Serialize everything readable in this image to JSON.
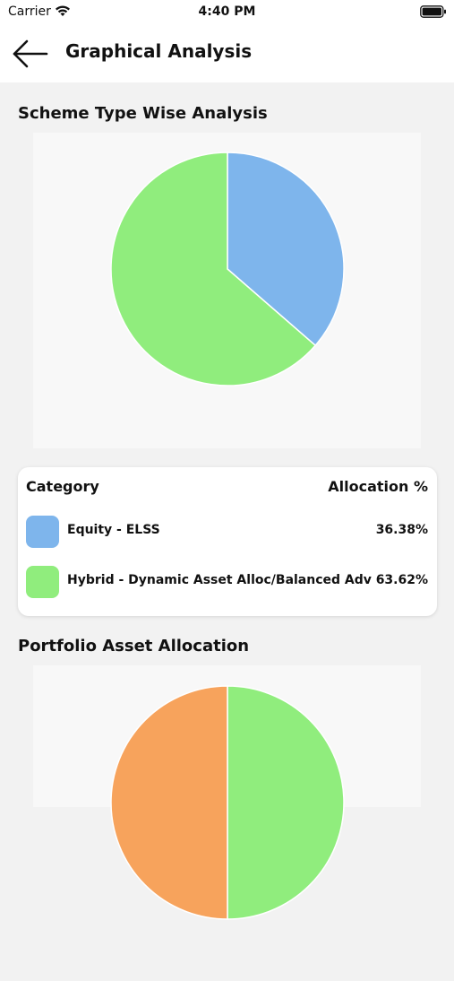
{
  "status_bar": {
    "carrier": "Carrier",
    "time": "4:40 PM"
  },
  "nav": {
    "title": "Graphical Analysis"
  },
  "scheme_section": {
    "title": "Scheme Type Wise Analysis"
  },
  "legend": {
    "header_category": "Category",
    "header_allocation": "Allocation %",
    "rows": [
      {
        "label": "Equity - ELSS",
        "value": "36.38%"
      },
      {
        "label": "Hybrid - Dynamic Asset Alloc/Balanced Adv",
        "value": "63.62%"
      }
    ]
  },
  "portfolio_section": {
    "title": "Portfolio Asset Allocation"
  },
  "colors": {
    "equity": "#7eb5ec",
    "hybrid": "#90ed7d",
    "orange": "#f7a35c"
  },
  "chart_data": [
    {
      "type": "pie",
      "categories": [
        "Equity - ELSS",
        "Hybrid - Dynamic Asset Alloc/Balanced Adv"
      ],
      "values": [
        36.38,
        63.62
      ],
      "colors": [
        "#7eb5ec",
        "#90ed7d"
      ]
    },
    {
      "type": "pie",
      "values": [
        50,
        50
      ],
      "colors": [
        "#90ed7d",
        "#f7a35c"
      ],
      "note_visible": "partially visible, cropped at bottom"
    }
  ]
}
